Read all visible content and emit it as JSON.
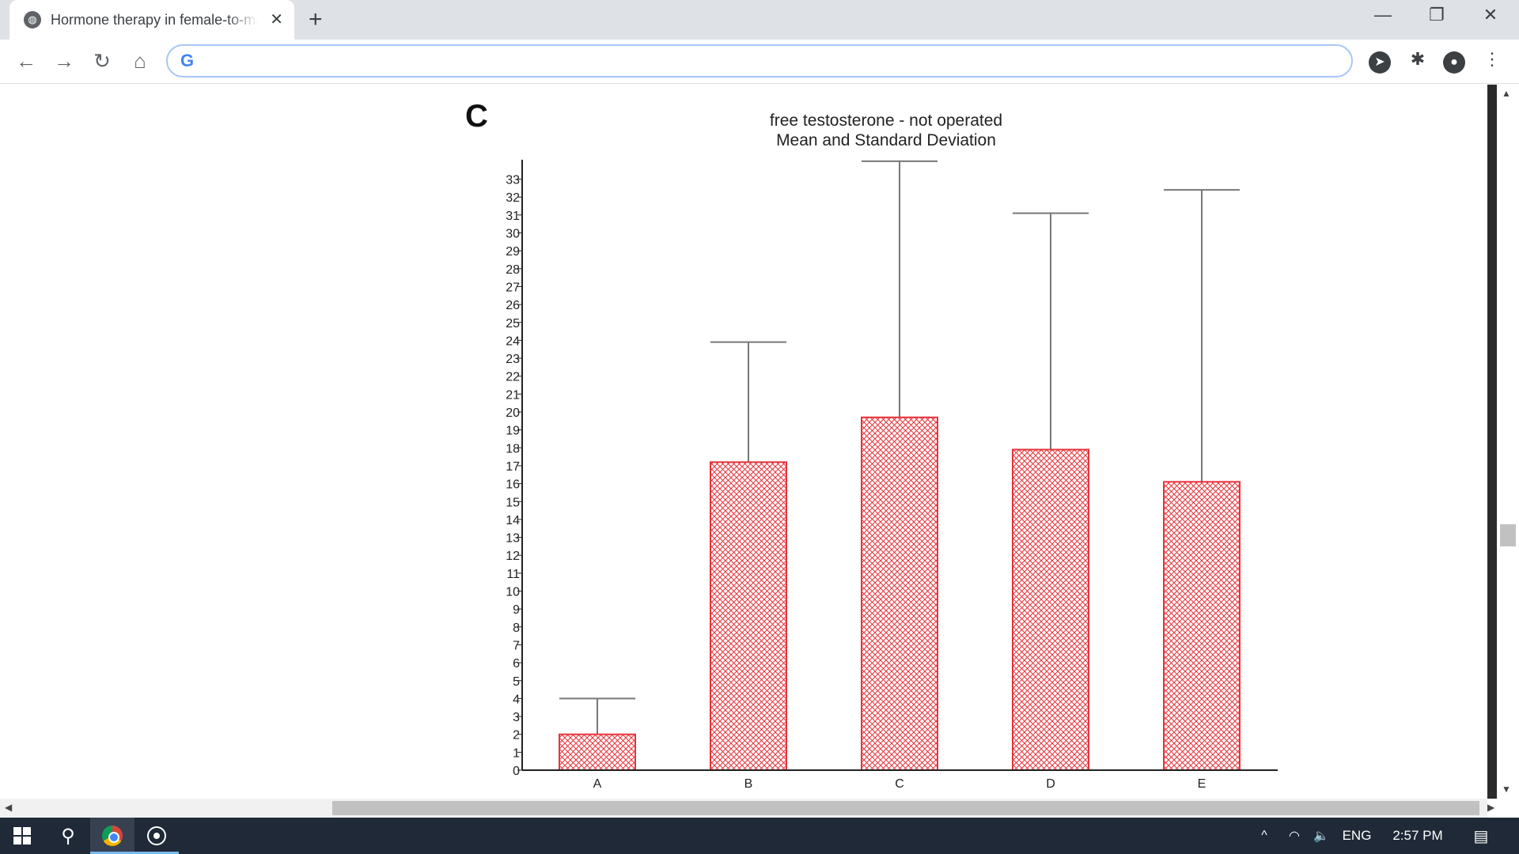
{
  "browser": {
    "tab_title": "Hormone therapy in female-to-male",
    "tab_close": "✕",
    "new_tab": "+",
    "address": ""
  },
  "window_controls": {
    "minimize": "—",
    "restore": "❐",
    "close": "✕"
  },
  "figure": {
    "panel_label": "C"
  },
  "chart_data": {
    "type": "bar",
    "title": "free testosterone - not operated",
    "subtitle": "Mean and Standard Deviation",
    "categories": [
      "A",
      "B",
      "C",
      "D",
      "E"
    ],
    "values": [
      2.0,
      17.2,
      19.7,
      17.9,
      16.1
    ],
    "error_upper": [
      4.0,
      23.9,
      34.0,
      31.1,
      32.4
    ],
    "ylim": [
      0,
      34
    ],
    "yticks": [
      "0",
      "1",
      "2",
      "3",
      "4",
      "5",
      "6",
      "7",
      "8",
      "9",
      "10",
      "11",
      "12",
      "13",
      "14",
      "15",
      "16",
      "17",
      "18",
      "19",
      "20",
      "21",
      "22",
      "23",
      "24",
      "25",
      "26",
      "27",
      "28",
      "29",
      "30",
      "31",
      "32",
      "33"
    ],
    "bar_fill": "#e8333a",
    "xlabel": "",
    "ylabel": ""
  },
  "taskbar": {
    "language": "ENG",
    "time": "2:57 PM"
  }
}
